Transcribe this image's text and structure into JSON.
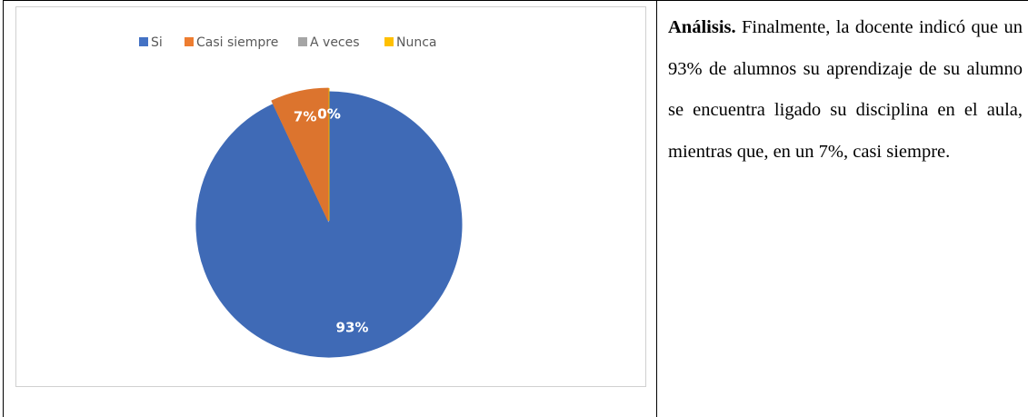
{
  "chart_data": {
    "type": "pie",
    "categories": [
      "Si",
      "Casi siempre",
      "A veces",
      "Nunca"
    ],
    "values": [
      93,
      7,
      0,
      0
    ],
    "value_labels": [
      "93%",
      "7%",
      "0%",
      "0%"
    ],
    "colors": [
      "#4472c4",
      "#ed7d31",
      "#a5a5a5",
      "#ffc000"
    ],
    "legend": "top"
  },
  "analysis": {
    "heading": "Análisis.",
    "text": "Finalmente, la docente indicó que un 93% de alumnos su aprendizaje de su alumno se encuentra ligado su disciplina en el aula, mientras que, en un 7%, casi siempre."
  }
}
